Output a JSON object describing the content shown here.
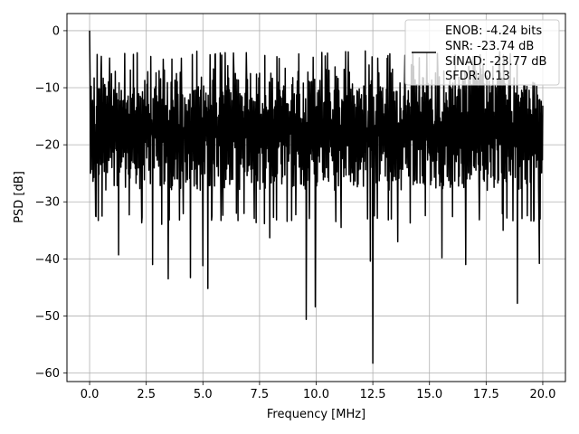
{
  "chart_data": {
    "type": "line",
    "xlabel": "Frequency [MHz]",
    "ylabel": "PSD [dB]",
    "xlim": [
      -1,
      21
    ],
    "ylim": [
      -61.5,
      3.0
    ],
    "xticks": [
      0.0,
      2.5,
      5.0,
      7.5,
      10.0,
      12.5,
      15.0,
      17.5,
      20.0
    ],
    "xtick_labels": [
      "0.0",
      "2.5",
      "5.0",
      "7.5",
      "10.0",
      "12.5",
      "15.0",
      "17.5",
      "20.0"
    ],
    "yticks": [
      0,
      -10,
      -20,
      -30,
      -40,
      -50,
      -60
    ],
    "ytick_labels": [
      "0",
      "−10",
      "−20",
      "−30",
      "−40",
      "−50",
      "−60"
    ],
    "grid": true,
    "legend_position": "top-right",
    "legend_lines": [
      "ENOB: -4.24 bits",
      "SNR: -23.74 dB",
      "SINAD: -23.77 dB",
      "SFDR: 0.13"
    ],
    "series": [
      {
        "color": "#000000",
        "description": "noise-like PSD trace, about 1200 points between 0 and 20 MHz",
        "x_range": [
          0.0,
          20.0
        ],
        "envelope_top_db": -5,
        "envelope_bottom_db": -32,
        "peak": {
          "x": 0.0,
          "y": 0.0
        },
        "notches": [
          {
            "x": 1.28,
            "y": -39.3
          },
          {
            "x": 2.78,
            "y": -41.0
          },
          {
            "x": 3.47,
            "y": -43.5
          },
          {
            "x": 4.45,
            "y": -43.3
          },
          {
            "x": 5.0,
            "y": -41.2
          },
          {
            "x": 5.22,
            "y": -45.2
          },
          {
            "x": 6.48,
            "y": -32.0
          },
          {
            "x": 7.95,
            "y": -36.3
          },
          {
            "x": 9.56,
            "y": -50.6
          },
          {
            "x": 9.96,
            "y": -48.4
          },
          {
            "x": 11.1,
            "y": -34.5
          },
          {
            "x": 12.39,
            "y": -40.4
          },
          {
            "x": 12.5,
            "y": -58.3
          },
          {
            "x": 13.6,
            "y": -37.0
          },
          {
            "x": 15.55,
            "y": -39.8
          },
          {
            "x": 16.6,
            "y": -41.0
          },
          {
            "x": 18.25,
            "y": -35.0
          },
          {
            "x": 18.88,
            "y": -47.8
          },
          {
            "x": 19.85,
            "y": -40.8
          }
        ]
      }
    ]
  }
}
